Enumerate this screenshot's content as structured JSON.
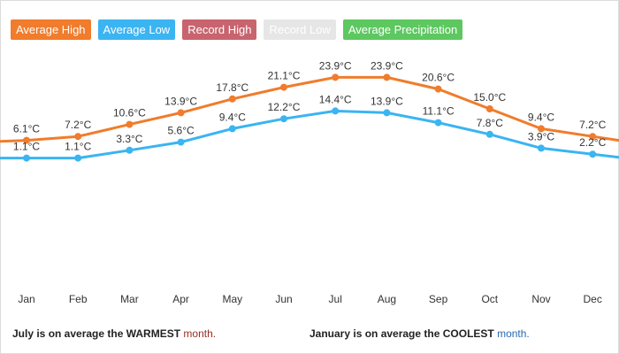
{
  "legend": {
    "items": [
      {
        "label": "Average High",
        "color": "#f07c2c"
      },
      {
        "label": "Average Low",
        "color": "#3bb4f2"
      },
      {
        "label": "Record High",
        "color": "#c8646e"
      },
      {
        "label": "Record Low",
        "color": "#e6e6e6"
      },
      {
        "label": "Average Precipitation",
        "color": "#5dc760"
      }
    ]
  },
  "chart_data": {
    "type": "line",
    "categories": [
      "Jan",
      "Feb",
      "Mar",
      "Apr",
      "May",
      "Jun",
      "Jul",
      "Aug",
      "Sep",
      "Oct",
      "Nov",
      "Dec"
    ],
    "series": [
      {
        "name": "Average High",
        "color": "#f07c2c",
        "values": [
          6.1,
          7.2,
          10.6,
          13.9,
          17.8,
          21.1,
          23.9,
          23.9,
          20.6,
          15.0,
          9.4,
          7.2
        ],
        "labels": [
          "6.1°C",
          "7.2°C",
          "10.6°C",
          "13.9°C",
          "17.8°C",
          "21.1°C",
          "23.9°C",
          "23.9°C",
          "20.6°C",
          "15.0°C",
          "9.4°C",
          "7.2°C"
        ]
      },
      {
        "name": "Average Low",
        "color": "#3bb4f2",
        "values": [
          1.1,
          1.1,
          3.3,
          5.6,
          9.4,
          12.2,
          14.4,
          13.9,
          11.1,
          7.8,
          3.9,
          2.2
        ],
        "labels": [
          "1.1°C",
          "1.1°C",
          "3.3°C",
          "5.6°C",
          "9.4°C",
          "12.2°C",
          "14.4°C",
          "13.9°C",
          "11.1°C",
          "7.8°C",
          "3.9°C",
          "2.2°C"
        ]
      }
    ],
    "grid": false,
    "legend_position": "top-left"
  },
  "footer": {
    "warmest_text": "July is on average the WARMEST",
    "warmest_word": "month.",
    "coolest_text": "January is on average the COOLEST",
    "coolest_word": "month."
  }
}
